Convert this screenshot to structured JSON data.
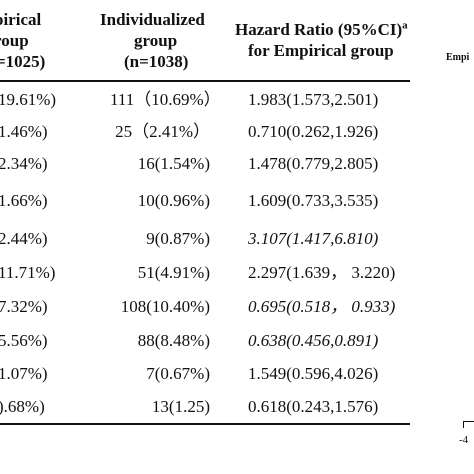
{
  "header": {
    "col1": [
      "pirical",
      "roup",
      "=1025)"
    ],
    "col2": [
      "Individualized",
      "group",
      "(n=1038)"
    ],
    "col3_line1": "Hazard Ratio (95%CI)",
    "col3_sup": "a",
    "col3_line2": "for Empirical group"
  },
  "side_label": "Empi",
  "axis_tick": "-4",
  "rows": [
    {
      "col1": "19.61%)",
      "col2": "111（10.69%）",
      "col3": "1.983(1.573,2.501)",
      "italic": false
    },
    {
      "col1": "1.46%)",
      "col2": "25（2.41%）",
      "col3": "0.710(0.262,1.926)",
      "italic": false
    },
    {
      "col1": "2.34%)",
      "col2": "16(1.54%)",
      "col3": "1.478(0.779,2.805)",
      "italic": false
    },
    {
      "col1": "1.66%)",
      "col2": "10(0.96%)",
      "col3": "1.609(0.733,3.535)",
      "italic": false
    },
    {
      "col1": "2.44%)",
      "col2": "9(0.87%)",
      "col3": "3.107(1.417,6.810)",
      "italic": true
    },
    {
      "col1": "11.71%)",
      "col2": "51(4.91%)",
      "col3": "2.297(1.639， 3.220)",
      "italic": false
    },
    {
      "col1": "7.32%)",
      "col2": "108(10.40%)",
      "col3": "0.695(0.518， 0.933)",
      "italic": true
    },
    {
      "col1": "5.56%)",
      "col2": "88(8.48%)",
      "col3": "0.638(0.456,0.891)",
      "italic": true
    },
    {
      "col1": "1.07%)",
      "col2": "7(0.67%)",
      "col3": "1.549(0.596,4.026)",
      "italic": false
    },
    {
      "col1": ").68%)",
      "col2": "13(1.25)",
      "col3": "0.618(0.243,1.576)",
      "italic": false
    }
  ]
}
